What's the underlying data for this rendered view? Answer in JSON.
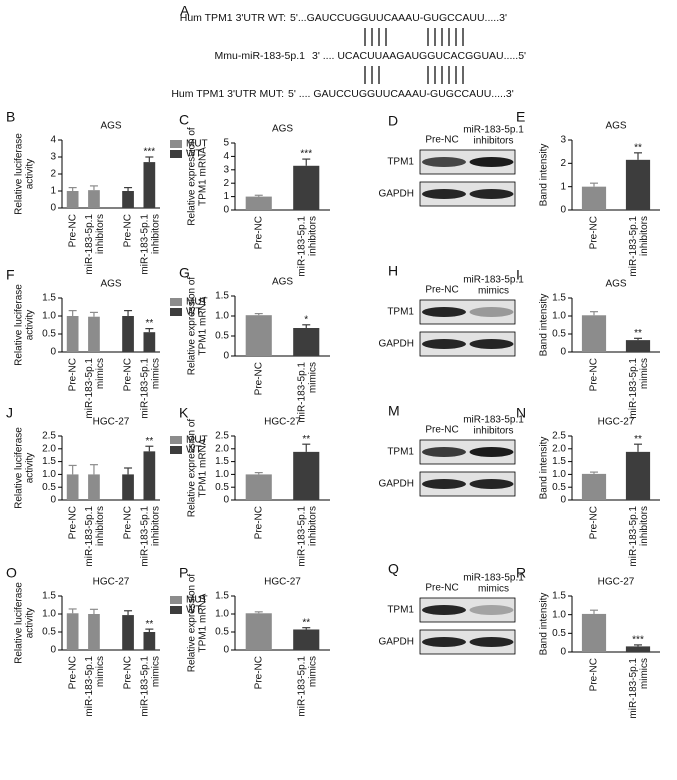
{
  "sequence_panel": {
    "label": "A",
    "rows": [
      {
        "name": "Hum TPM1 3'UTR WT:",
        "sequence": "5'...GAUCCUGGUUCAAAU-GUGCCAUU.....3'"
      },
      {
        "name": "Mmu-miR-183-5p.1",
        "sequence": "3' .... UCACUUAAGAUGGUCACGGUAU.....5'"
      },
      {
        "name": "Hum TPM1 3'UTR MUT:",
        "sequence": "5' .... GAUCCUGGUUCAAAU-GUGCCAUU.....3'"
      }
    ]
  },
  "chart_data": [
    {
      "label": "B",
      "type": "bar",
      "title": "AGS",
      "ylabel": [
        "Relative luciferase",
        "activity"
      ],
      "categories": [
        "Pre-NC",
        "miR-183-5p.1 inhibitors"
      ],
      "series": [
        {
          "name": "MUT",
          "color": "#8c8c8c",
          "values": [
            1.0,
            1.05
          ],
          "errors": [
            0.2,
            0.25
          ],
          "significance": [
            null,
            null
          ]
        },
        {
          "name": "WT",
          "color": "#3d3d3d",
          "values": [
            1.0,
            2.7
          ],
          "errors": [
            0.2,
            0.3
          ],
          "significance": [
            null,
            "***"
          ]
        }
      ],
      "ylim": [
        0,
        4
      ],
      "yticks": [
        0,
        1,
        2,
        3,
        4
      ]
    },
    {
      "label": "C",
      "type": "bar",
      "title": "AGS",
      "ylabel": [
        "Relative expression of",
        "TPM1 mRNA"
      ],
      "categories": [
        "Pre-NC",
        "miR-183-5p.1 inhibitors"
      ],
      "values": [
        1.0,
        3.3
      ],
      "errors": [
        0.1,
        0.5
      ],
      "significance": [
        null,
        "***"
      ],
      "colors": [
        "#8c8c8c",
        "#3d3d3d"
      ],
      "ylim": [
        0,
        5
      ],
      "yticks": [
        0,
        1,
        2,
        3,
        4,
        5
      ]
    },
    {
      "label": "E",
      "type": "bar",
      "title": "AGS",
      "ylabel": [
        "Band intensity"
      ],
      "categories": [
        "Pre-NC",
        "miR-183-5p.1 inhibitors"
      ],
      "values": [
        1.0,
        2.15
      ],
      "errors": [
        0.15,
        0.3
      ],
      "significance": [
        null,
        "**"
      ],
      "colors": [
        "#8c8c8c",
        "#3d3d3d"
      ],
      "ylim": [
        0,
        3
      ],
      "yticks": [
        0,
        1,
        2,
        3
      ]
    },
    {
      "label": "F",
      "type": "bar",
      "title": "AGS",
      "ylabel": [
        "Relative luciferase",
        "activity"
      ],
      "categories": [
        "Pre-NC",
        "miR-183-5p.1 mimics"
      ],
      "series": [
        {
          "name": "MUT",
          "color": "#8c8c8c",
          "values": [
            1.0,
            0.98
          ],
          "errors": [
            0.15,
            0.12
          ],
          "significance": [
            null,
            null
          ]
        },
        {
          "name": "WT",
          "color": "#3d3d3d",
          "values": [
            1.0,
            0.55
          ],
          "errors": [
            0.15,
            0.1
          ],
          "significance": [
            null,
            "**"
          ]
        }
      ],
      "ylim": [
        0,
        1.5
      ],
      "yticks": [
        0,
        0.5,
        {
          "value": 1,
          "label": "1.0"
        },
        1.5
      ]
    },
    {
      "label": "G",
      "type": "bar",
      "title": "AGS",
      "ylabel": [
        "Relative expression of",
        "TPM1 mRNA"
      ],
      "categories": [
        "Pre-NC",
        "miR-183-5p.1 mimics"
      ],
      "values": [
        1.02,
        0.7
      ],
      "errors": [
        0.04,
        0.08
      ],
      "significance": [
        null,
        "*"
      ],
      "colors": [
        "#8c8c8c",
        "#3d3d3d"
      ],
      "ylim": [
        0,
        1.5
      ],
      "yticks": [
        0,
        0.5,
        {
          "value": 1,
          "label": "1.0"
        },
        1.5
      ]
    },
    {
      "label": "I",
      "type": "bar",
      "title": "AGS",
      "ylabel": [
        "Band intensity"
      ],
      "categories": [
        "Pre-NC",
        "miR-183-5p.1 mimics"
      ],
      "values": [
        1.02,
        0.33
      ],
      "errors": [
        0.1,
        0.05
      ],
      "significance": [
        null,
        "**"
      ],
      "colors": [
        "#8c8c8c",
        "#3d3d3d"
      ],
      "ylim": [
        0,
        1.5
      ],
      "yticks": [
        0,
        0.5,
        {
          "value": 1,
          "label": "1.0"
        },
        1.5
      ]
    },
    {
      "label": "J",
      "type": "bar",
      "title": "HGC-27",
      "ylabel": [
        "Relative luciferase",
        "activity"
      ],
      "categories": [
        "Pre-NC",
        "miR-183-5p.1 inhibitors"
      ],
      "series": [
        {
          "name": "MUT",
          "color": "#8c8c8c",
          "values": [
            1.0,
            1.0
          ],
          "errors": [
            0.35,
            0.38
          ],
          "significance": [
            null,
            null
          ]
        },
        {
          "name": "WT",
          "color": "#3d3d3d",
          "values": [
            1.0,
            1.9
          ],
          "errors": [
            0.25,
            0.2
          ],
          "significance": [
            null,
            "**"
          ]
        }
      ],
      "ylim": [
        0,
        2.5
      ],
      "yticks": [
        0,
        0.5,
        {
          "value": 1,
          "label": "1.0"
        },
        1.5,
        {
          "value": 2,
          "label": "2.0"
        },
        2.5
      ]
    },
    {
      "label": "K",
      "type": "bar",
      "title": "HGC-27",
      "ylabel": [
        "Relative expression of",
        "TPM1 mRNA"
      ],
      "categories": [
        "Pre-NC",
        "miR-183-5p.1 inhibitors"
      ],
      "values": [
        1.0,
        1.88
      ],
      "errors": [
        0.07,
        0.3
      ],
      "significance": [
        null,
        "**"
      ],
      "colors": [
        "#8c8c8c",
        "#3d3d3d"
      ],
      "ylim": [
        0,
        2.5
      ],
      "yticks": [
        0,
        0.5,
        {
          "value": 1,
          "label": "1.0"
        },
        1.5,
        {
          "value": 2,
          "label": "2.0"
        },
        2.5
      ]
    },
    {
      "label": "N",
      "type": "bar",
      "title": "HGC-27",
      "ylabel": [
        "Band intensity"
      ],
      "categories": [
        "Pre-NC",
        "miR-183-5p.1 inhibitors"
      ],
      "values": [
        1.02,
        1.88
      ],
      "errors": [
        0.07,
        0.3
      ],
      "significance": [
        null,
        "**"
      ],
      "colors": [
        "#8c8c8c",
        "#3d3d3d"
      ],
      "ylim": [
        0,
        2.5
      ],
      "yticks": [
        0,
        0.5,
        {
          "value": 1,
          "label": "1.0"
        },
        1.5,
        {
          "value": 2,
          "label": "2.0"
        },
        2.5
      ]
    },
    {
      "label": "O",
      "type": "bar",
      "title": "HGC-27",
      "ylabel": [
        "Relative luciferase",
        "activity"
      ],
      "categories": [
        "Pre-NC",
        "miR-183-5p.1 mimics"
      ],
      "series": [
        {
          "name": "MUT",
          "color": "#8c8c8c",
          "values": [
            1.02,
            1.0
          ],
          "errors": [
            0.12,
            0.13
          ],
          "significance": [
            null,
            null
          ]
        },
        {
          "name": "WT",
          "color": "#3d3d3d",
          "values": [
            0.97,
            0.5
          ],
          "errors": [
            0.12,
            0.08
          ],
          "significance": [
            null,
            "**"
          ]
        }
      ],
      "ylim": [
        0,
        1.5
      ],
      "yticks": [
        0,
        0.5,
        {
          "value": 1,
          "label": "1.0"
        },
        1.5
      ]
    },
    {
      "label": "P",
      "type": "bar",
      "title": "HGC-27",
      "ylabel": [
        "Relative expression of",
        "TPM1 mRNA"
      ],
      "categories": [
        "Pre-NC",
        "miR-183-5p.1 mimics"
      ],
      "values": [
        1.02,
        0.57
      ],
      "errors": [
        0.04,
        0.05
      ],
      "significance": [
        null,
        "**"
      ],
      "colors": [
        "#8c8c8c",
        "#3d3d3d"
      ],
      "ylim": [
        0,
        1.5
      ],
      "yticks": [
        0,
        0.5,
        {
          "value": 1,
          "label": "1.0"
        },
        1.5
      ]
    },
    {
      "label": "R",
      "type": "bar",
      "title": "HGC-27",
      "ylabel": [
        "Band intensity"
      ],
      "categories": [
        "Pre-NC",
        "miR-183-5p.1 mimics"
      ],
      "values": [
        1.02,
        0.15
      ],
      "errors": [
        0.1,
        0.04
      ],
      "significance": [
        null,
        "***"
      ],
      "colors": [
        "#8c8c8c",
        "#3d3d3d"
      ],
      "ylim": [
        0,
        1.5
      ],
      "yticks": [
        0,
        0.5,
        {
          "value": 1,
          "label": "1.0"
        },
        1.5
      ]
    }
  ],
  "blots": [
    {
      "label": "D",
      "lanes": [
        [
          "Pre-NC"
        ],
        [
          "miR-183-5p.1",
          "inhibitors"
        ]
      ],
      "bands": [
        "TPM1",
        "GAPDH"
      ]
    },
    {
      "label": "H",
      "lanes": [
        [
          "Pre-NC"
        ],
        [
          "miR-183-5p.1",
          "mimics"
        ]
      ],
      "bands": [
        "TPM1",
        "GAPDH"
      ]
    },
    {
      "label": "M",
      "lanes": [
        [
          "Pre-NC"
        ],
        [
          "miR-183-5p.1",
          "inhibitors"
        ]
      ],
      "bands": [
        "TPM1",
        "GAPDH"
      ]
    },
    {
      "label": "Q",
      "lanes": [
        [
          "Pre-NC"
        ],
        [
          "miR-183-5p.1",
          "mimics"
        ]
      ],
      "bands": [
        "TPM1",
        "GAPDH"
      ]
    }
  ]
}
